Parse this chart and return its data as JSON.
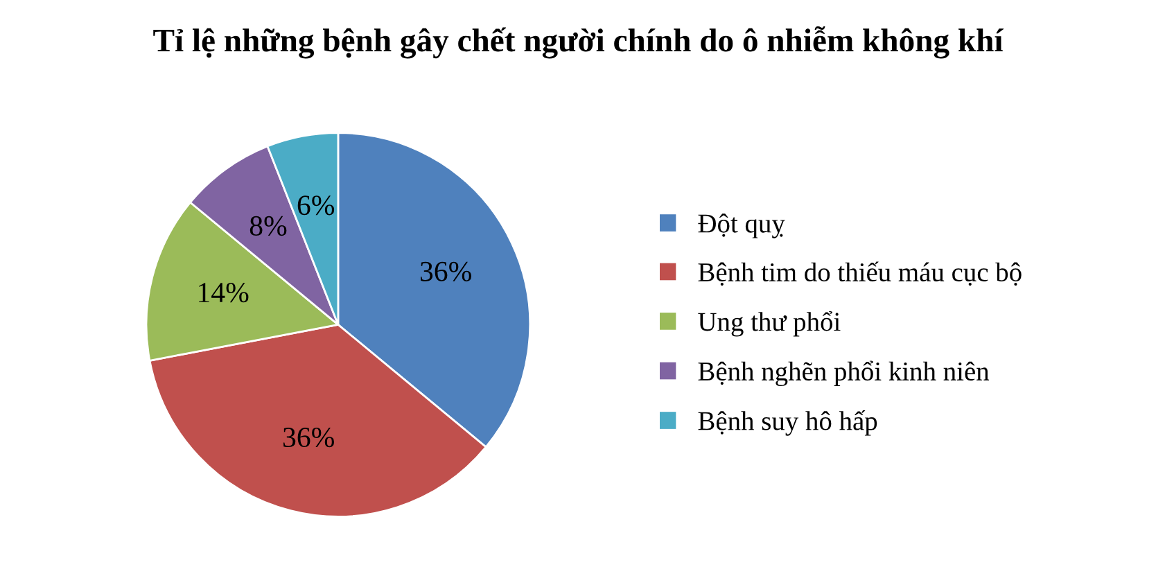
{
  "chart_data": {
    "type": "pie",
    "title": "Tỉ lệ những bệnh gây chết người chính do ô nhiễm không khí",
    "categories": [
      "Đột quỵ",
      "Bệnh tim do thiếu máu cục bộ",
      "Ung thư phổi",
      "Bệnh nghẽn phổi kinh niên",
      "Bệnh suy hô hấp"
    ],
    "values": [
      36,
      36,
      14,
      8,
      6
    ],
    "colors": [
      "#4f81bd",
      "#c0504d",
      "#9bbb59",
      "#8064a2",
      "#4bacc6"
    ],
    "value_labels": [
      "36%",
      "36%",
      "14%",
      "8%",
      "6%"
    ],
    "legend": "right"
  }
}
